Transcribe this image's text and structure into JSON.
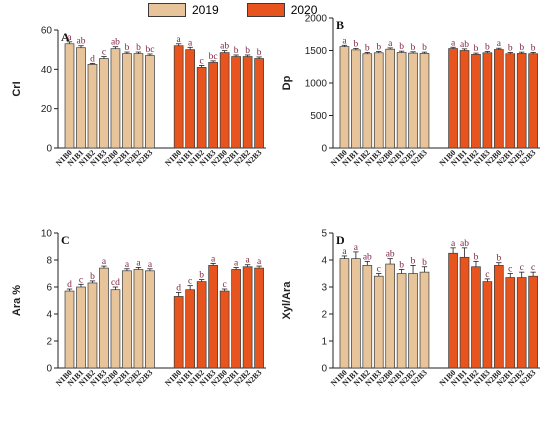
{
  "legend": [
    {
      "name": "2019",
      "color": "#e8c49a"
    },
    {
      "name": "2020",
      "color": "#e8541e"
    }
  ],
  "colors": {
    "y2019": "#e8c49a",
    "y2020": "#e8541e",
    "outline": "#3a3a3a",
    "letter": "#7b1f3a"
  },
  "chart_data": [
    {
      "type": "bar",
      "panel": "A",
      "ylabel": "CrI",
      "ylim": [
        0,
        60
      ],
      "yticks": [
        0,
        20,
        40,
        60
      ],
      "categories": [
        "N1B0",
        "N1B1",
        "N1B2",
        "N1B3",
        "N2B0",
        "N2B1",
        "N2B2",
        "N2B3"
      ],
      "series": [
        {
          "name": "2019",
          "values": [
            53,
            51,
            42.5,
            45.5,
            50.5,
            48,
            48,
            47
          ],
          "errors": [
            1.0,
            1.0,
            0.5,
            1.0,
            1.0,
            0.8,
            0.8,
            0.8
          ],
          "letters": [
            "a",
            "ab",
            "d",
            "c",
            "ab",
            "b",
            "b",
            "bc"
          ]
        },
        {
          "name": "2020",
          "values": [
            52,
            50,
            41,
            43.5,
            48.5,
            46.5,
            46.5,
            45.5
          ],
          "errors": [
            1.0,
            1.2,
            1.0,
            0.8,
            1.0,
            0.8,
            0.8,
            0.8
          ],
          "letters": [
            "a",
            "a",
            "c",
            "bc",
            "ab",
            "b",
            "b",
            "b"
          ]
        }
      ]
    },
    {
      "type": "bar",
      "panel": "B",
      "ylabel": "Dp",
      "ylim": [
        0,
        2000
      ],
      "yticks": [
        0,
        500,
        1000,
        1500,
        2000
      ],
      "categories": [
        "N1B0",
        "N1B1",
        "N1B2",
        "N1B3",
        "N2B0",
        "N2B1",
        "N2B2",
        "N2B3"
      ],
      "series": [
        {
          "name": "2019",
          "values": [
            1560,
            1510,
            1450,
            1465,
            1520,
            1470,
            1460,
            1455
          ],
          "errors": [
            20,
            20,
            20,
            20,
            20,
            20,
            20,
            20
          ],
          "letters": [
            "a",
            "b",
            "b",
            "b",
            "a",
            "b",
            "b",
            "b"
          ]
        },
        {
          "name": "2020",
          "values": [
            1530,
            1500,
            1440,
            1465,
            1515,
            1450,
            1455,
            1450
          ],
          "errors": [
            20,
            25,
            20,
            20,
            20,
            20,
            20,
            20
          ],
          "letters": [
            "a",
            "ab",
            "b",
            "b",
            "a",
            "b",
            "b",
            "b"
          ]
        }
      ]
    },
    {
      "type": "bar",
      "panel": "C",
      "ylabel": "Ara %",
      "ylim": [
        0,
        10
      ],
      "yticks": [
        0,
        2,
        4,
        6,
        8,
        10
      ],
      "categories": [
        "N1B0",
        "N1B1",
        "N1B2",
        "N1B3",
        "N2B0",
        "N2B1",
        "N2B2",
        "N2B3"
      ],
      "series": [
        {
          "name": "2019",
          "values": [
            5.7,
            6.0,
            6.3,
            7.4,
            5.8,
            7.2,
            7.3,
            7.2
          ],
          "errors": [
            0.15,
            0.2,
            0.15,
            0.15,
            0.2,
            0.15,
            0.15,
            0.15
          ],
          "letters": [
            "d",
            "c",
            "b",
            "a",
            "cd",
            "a",
            "a",
            "a"
          ]
        },
        {
          "name": "2020",
          "values": [
            5.3,
            5.8,
            6.4,
            7.6,
            5.7,
            7.3,
            7.5,
            7.4
          ],
          "errors": [
            0.3,
            0.3,
            0.15,
            0.15,
            0.15,
            0.15,
            0.15,
            0.15
          ],
          "letters": [
            "d",
            "c",
            "b",
            "a",
            "c",
            "a",
            "a",
            "a"
          ]
        }
      ]
    },
    {
      "type": "bar",
      "panel": "D",
      "ylabel": "Xyl/Ara",
      "ylim": [
        0,
        5
      ],
      "yticks": [
        0,
        1,
        2,
        3,
        4,
        5
      ],
      "categories": [
        "N1B0",
        "N1B1",
        "N1B2",
        "N1B3",
        "N2B0",
        "N2B1",
        "N2B2",
        "N2B3"
      ],
      "series": [
        {
          "name": "2019",
          "values": [
            4.05,
            4.05,
            3.8,
            3.4,
            3.85,
            3.5,
            3.5,
            3.55
          ],
          "errors": [
            0.1,
            0.25,
            0.15,
            0.1,
            0.2,
            0.15,
            0.3,
            0.2
          ],
          "letters": [
            "a",
            "a",
            "ab",
            "c",
            "ab",
            "b",
            "b",
            "b"
          ]
        },
        {
          "name": "2020",
          "values": [
            4.25,
            4.1,
            3.75,
            3.2,
            3.8,
            3.35,
            3.35,
            3.4
          ],
          "errors": [
            0.2,
            0.35,
            0.2,
            0.1,
            0.1,
            0.15,
            0.2,
            0.15
          ],
          "letters": [
            "a",
            "ab",
            "b",
            "c",
            "b",
            "c",
            "c",
            "c"
          ]
        }
      ]
    }
  ]
}
